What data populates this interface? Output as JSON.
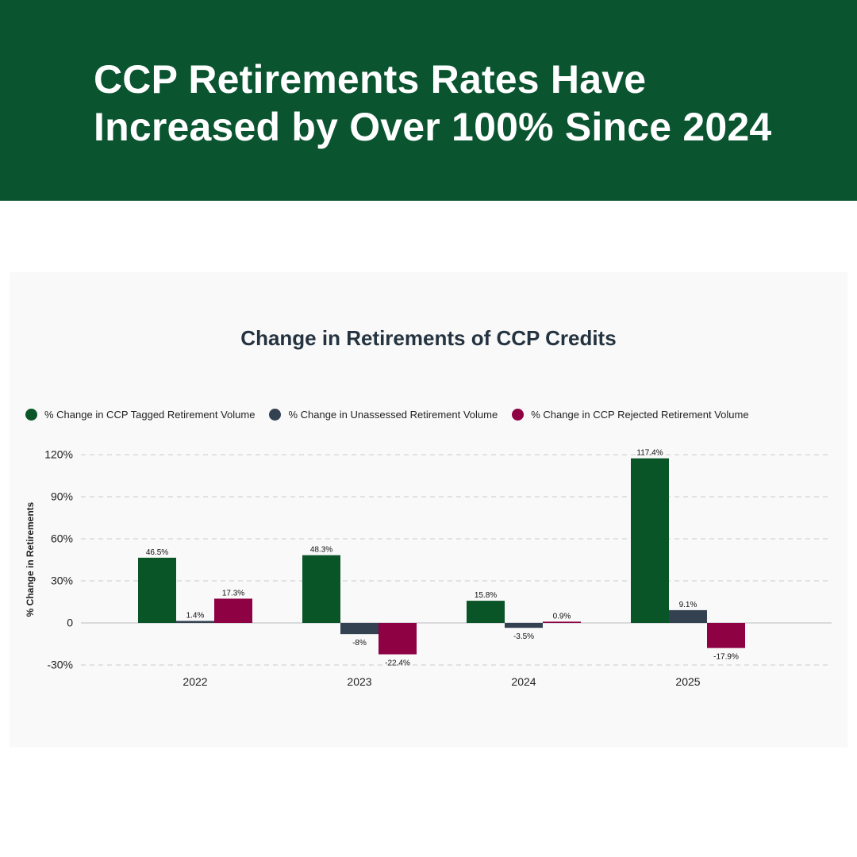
{
  "header": {
    "title": "CCP Retirements Rates Have Increased by Over 100% Since 2024"
  },
  "colors": {
    "banner": "#0a5430",
    "tagged": "#0a5527",
    "unassessed": "#334151",
    "rejected": "#8e0244"
  },
  "chart_data": {
    "type": "bar",
    "title": "Change in Retirements of CCP Credits",
    "xlabel": "",
    "ylabel": "% Change in Retirements",
    "ylim": [
      -30,
      120
    ],
    "yticks": [
      120,
      90,
      60,
      30,
      0,
      -30
    ],
    "ytick_labels": [
      "120%",
      "90%",
      "60%",
      "30%",
      "0",
      "-30%"
    ],
    "categories": [
      "2022",
      "2023",
      "2024",
      "2025"
    ],
    "legend_position": "top-left",
    "grid": "horizontal-dashed",
    "series": [
      {
        "name": "% Change in CCP Tagged Retirement Volume",
        "color": "#0a5527",
        "values": [
          46.5,
          48.3,
          15.8,
          117.4
        ],
        "labels": [
          "46.5%",
          "48.3%",
          "15.8%",
          "117.4%"
        ]
      },
      {
        "name": "% Change in Unassessed Retirement Volume",
        "color": "#334151",
        "values": [
          1.4,
          -8,
          -3.5,
          9.1
        ],
        "labels": [
          "1.4%",
          "-8%",
          "-3.5%",
          "9.1%"
        ]
      },
      {
        "name": "% Change in CCP Rejected Retirement Volume",
        "color": "#8e0244",
        "values": [
          17.3,
          -22.4,
          0.9,
          -17.9
        ],
        "labels": [
          "17.3%",
          "-22.4%",
          "0.9%",
          "-17.9%"
        ]
      }
    ]
  }
}
